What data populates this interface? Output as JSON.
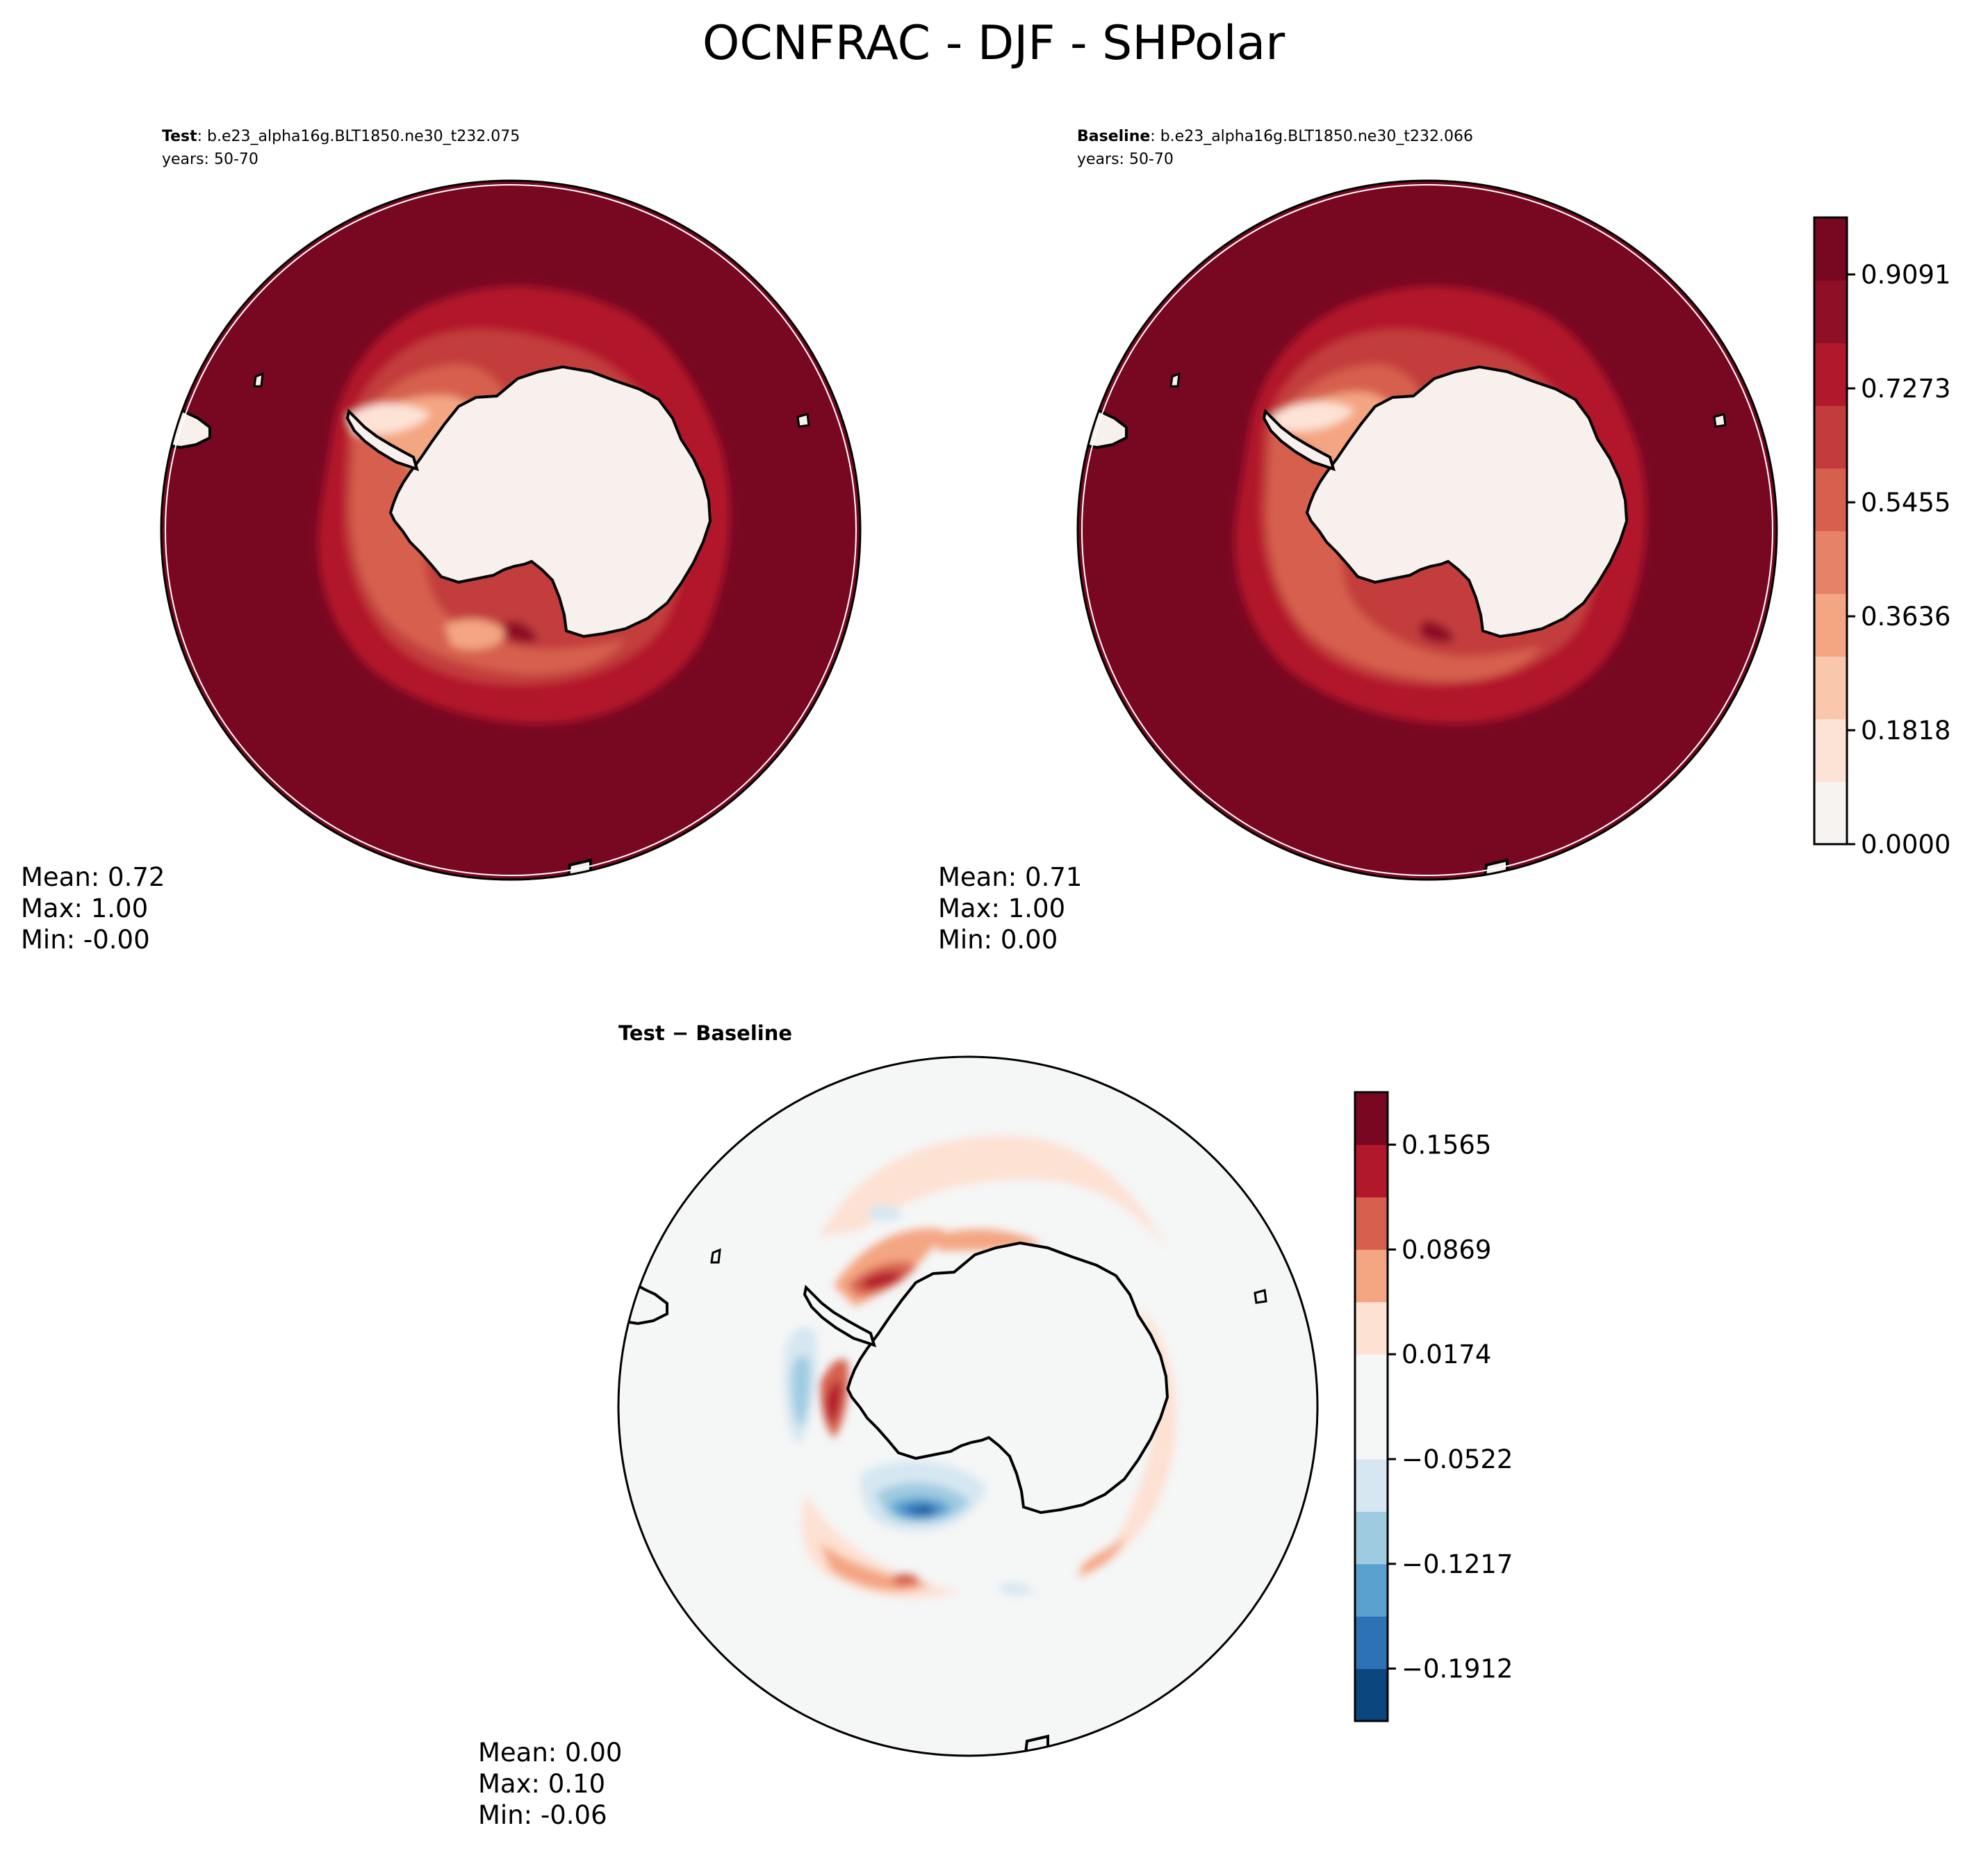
{
  "title": "OCNFRAC - DJF - SHPolar",
  "colors": {
    "reds_levels": [
      "#f7f3f0",
      "#fde3d6",
      "#f9c7ac",
      "#f4a582",
      "#e58267",
      "#d6604d",
      "#c33c3c",
      "#b2182b",
      "#8f0f27",
      "#780822"
    ],
    "diff_levels": [
      "#0c467f",
      "#2d72b5",
      "#5aa1cf",
      "#9fcbe1",
      "#d6e7f1",
      "#f5f6f6",
      "#fde1d3",
      "#f4a582",
      "#d6604d",
      "#b2182b",
      "#7a0722"
    ],
    "land": "#f7f0ec",
    "ocean_diff_neutral": "#f5f6f6",
    "coastline": "#000000"
  },
  "panels": [
    {
      "id": "test",
      "label_bold": "Test",
      "label_rest": ": b.e23_alpha16g.BLT1850.ne30_t232.075",
      "years": "years: 50-70",
      "stats": {
        "mean": "Mean:  0.72",
        "max": "Max:  1.00",
        "min": "Min: -0.00"
      }
    },
    {
      "id": "baseline",
      "label_bold": "Baseline",
      "label_rest": ": b.e23_alpha16g.BLT1850.ne30_t232.066",
      "years": "years: 50-70",
      "stats": {
        "mean": "Mean:  0.71",
        "max": "Max:  1.00",
        "min": "Min:  0.00"
      }
    },
    {
      "id": "diff",
      "label_bold": "Test − Baseline",
      "stats": {
        "mean": "Mean:  0.00",
        "max": "Max:  0.10",
        "min": "Min: -0.06"
      }
    }
  ],
  "chart_data": [
    {
      "type": "heatmap",
      "panel": "Test",
      "projection": "south polar stereographic",
      "colorbar": "shared",
      "mean": 0.72,
      "max": 1.0,
      "min": -0.0
    },
    {
      "type": "heatmap",
      "panel": "Baseline",
      "projection": "south polar stereographic",
      "colorbar": "shared",
      "mean": 0.71,
      "max": 1.0,
      "min": 0.0
    },
    {
      "type": "heatmap",
      "panel": "Test - Baseline",
      "projection": "south polar stereographic",
      "mean": 0.0,
      "max": 0.1,
      "min": -0.06
    }
  ],
  "colorbars": {
    "main": {
      "range": [
        0.0,
        1.0
      ],
      "n_levels": 10,
      "ticks": [
        0.0,
        0.1818,
        0.3636,
        0.5455,
        0.7273,
        0.9091
      ],
      "tick_labels": [
        "0.0000",
        "0.1818",
        "0.3636",
        "0.5455",
        "0.7273",
        "0.9091"
      ]
    },
    "diff": {
      "range": [
        -0.226,
        0.1913
      ],
      "n_levels": 12,
      "ticks": [
        -0.1912,
        -0.1217,
        -0.0522,
        0.0174,
        0.0869,
        0.1565
      ],
      "tick_labels": [
        "−0.1912",
        "−0.1217",
        "−0.0522",
        "0.0174",
        "0.0869",
        "0.1565"
      ]
    }
  }
}
